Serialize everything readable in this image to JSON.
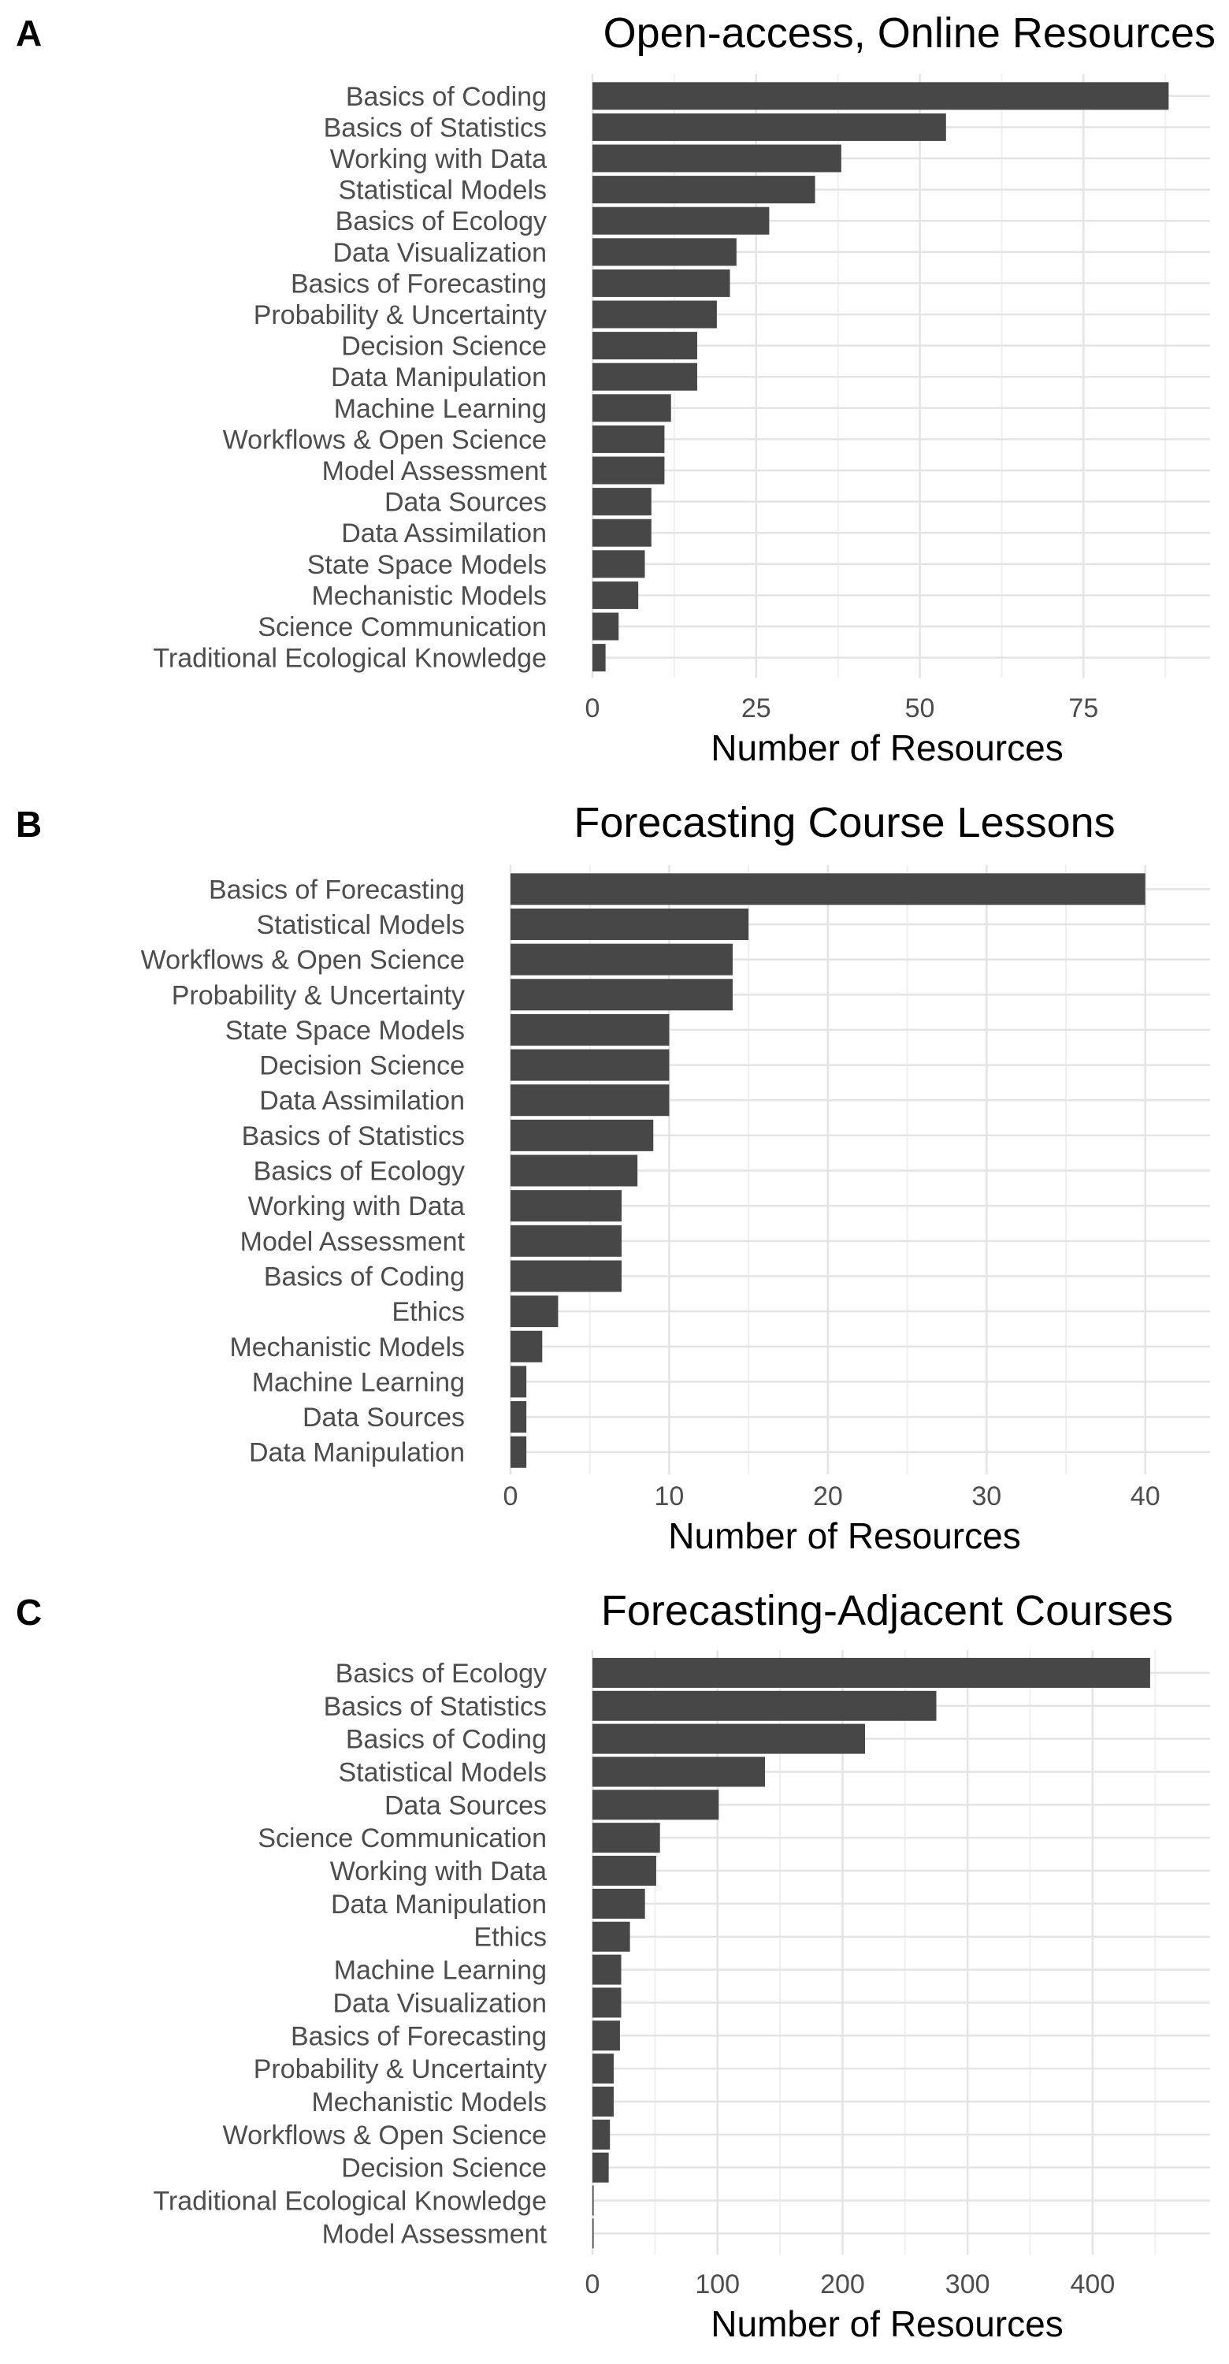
{
  "chart_data": [
    {
      "panel": "A",
      "type": "bar",
      "orientation": "horizontal",
      "title": "Open-access, Online Resources",
      "xlabel": "Number of Resources",
      "ylabel": "",
      "xlim": [
        0,
        90
      ],
      "xticks": [
        0,
        25,
        50,
        75
      ],
      "grid": true,
      "bar_color": "#474747",
      "categories": [
        "Basics of Coding",
        "Basics of Statistics",
        "Working with Data",
        "Statistical Models",
        "Basics of Ecology",
        "Data Visualization",
        "Basics of Forecasting",
        "Probability & Uncertainty",
        "Decision Science",
        "Data Manipulation",
        "Machine Learning",
        "Workflows & Open Science",
        "Model Assessment",
        "Data Sources",
        "Data Assimilation",
        "State Space Models",
        "Mechanistic Models",
        "Science Communication",
        "Traditional Ecological Knowledge"
      ],
      "values": [
        88,
        54,
        38,
        34,
        27,
        22,
        21,
        19,
        16,
        16,
        12,
        11,
        11,
        9,
        9,
        8,
        7,
        4,
        2
      ]
    },
    {
      "panel": "B",
      "type": "bar",
      "orientation": "horizontal",
      "title": "Forecasting Course Lessons",
      "xlabel": "Number of Resources",
      "ylabel": "",
      "xlim": [
        0,
        42
      ],
      "xticks": [
        0,
        10,
        20,
        30,
        40
      ],
      "grid": true,
      "bar_color": "#474747",
      "categories": [
        "Basics of Forecasting",
        "Statistical Models",
        "Workflows & Open Science",
        "Probability & Uncertainty",
        "State Space Models",
        "Decision Science",
        "Data Assimilation",
        "Basics of Statistics",
        "Basics of Ecology",
        "Working with Data",
        "Model Assessment",
        "Basics of Coding",
        "Ethics",
        "Mechanistic Models",
        "Machine Learning",
        "Data Sources",
        "Data Manipulation"
      ],
      "values": [
        40,
        15,
        14,
        14,
        10,
        10,
        10,
        9,
        8,
        7,
        7,
        7,
        3,
        2,
        1,
        1,
        1
      ]
    },
    {
      "panel": "C",
      "type": "bar",
      "orientation": "horizontal",
      "title": "Forecasting-Adjacent Courses",
      "xlabel": "Number of Resources",
      "ylabel": "",
      "xlim": [
        0,
        470
      ],
      "xticks": [
        0,
        100,
        200,
        300,
        400
      ],
      "grid": true,
      "bar_color": "#474747",
      "categories": [
        "Basics of Ecology",
        "Basics of Statistics",
        "Basics of Coding",
        "Statistical Models",
        "Data Sources",
        "Science Communication",
        "Working with Data",
        "Data Manipulation",
        "Ethics",
        "Machine Learning",
        "Data Visualization",
        "Basics of Forecasting",
        "Probability & Uncertainty",
        "Mechanistic Models",
        "Workflows & Open Science",
        "Decision Science",
        "Traditional Ecological Knowledge",
        "Model Assessment"
      ],
      "values": [
        446,
        275,
        218,
        138,
        101,
        54,
        51,
        42,
        30,
        23,
        23,
        22,
        17,
        17,
        14,
        13,
        1,
        1
      ]
    }
  ]
}
